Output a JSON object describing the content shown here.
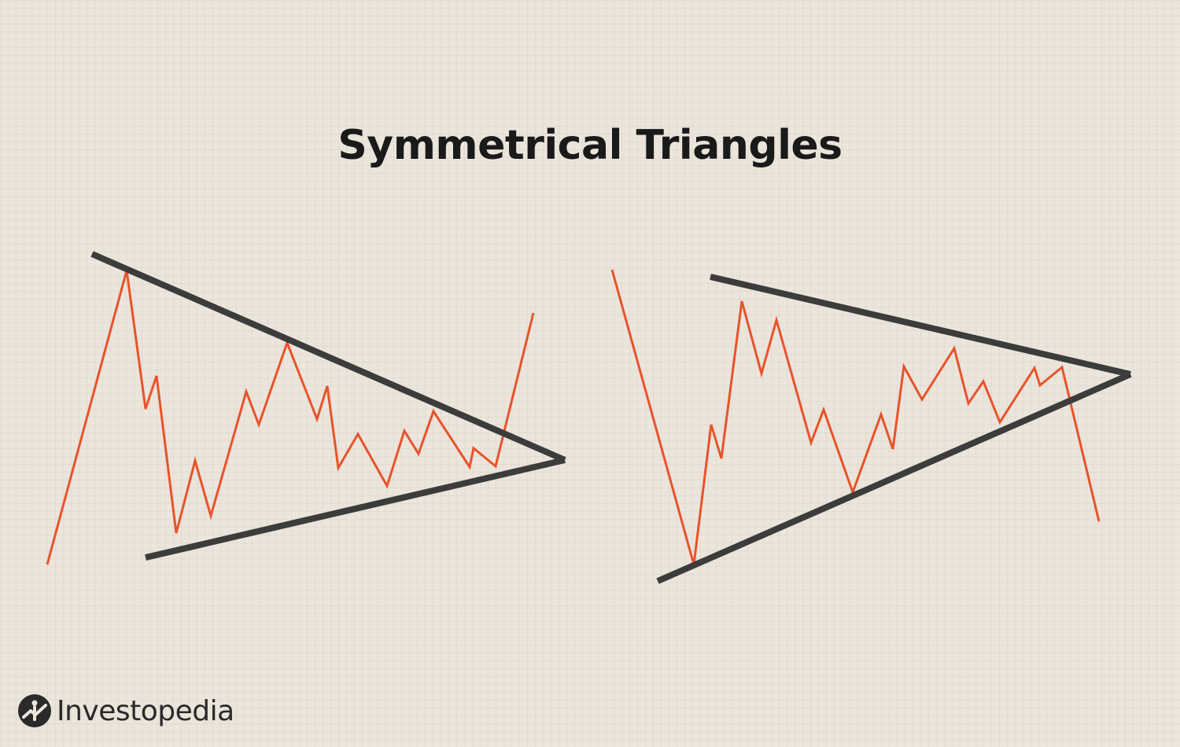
{
  "title": "Symmetrical Triangles",
  "brand": "Investopedia",
  "colors": {
    "background": "#ebe5dc",
    "trendline": "#3c3c3c",
    "price": "#e8532a",
    "text": "#1a1a1a"
  },
  "patterns": [
    {
      "breakout": "up"
    },
    {
      "breakout": "down"
    }
  ]
}
